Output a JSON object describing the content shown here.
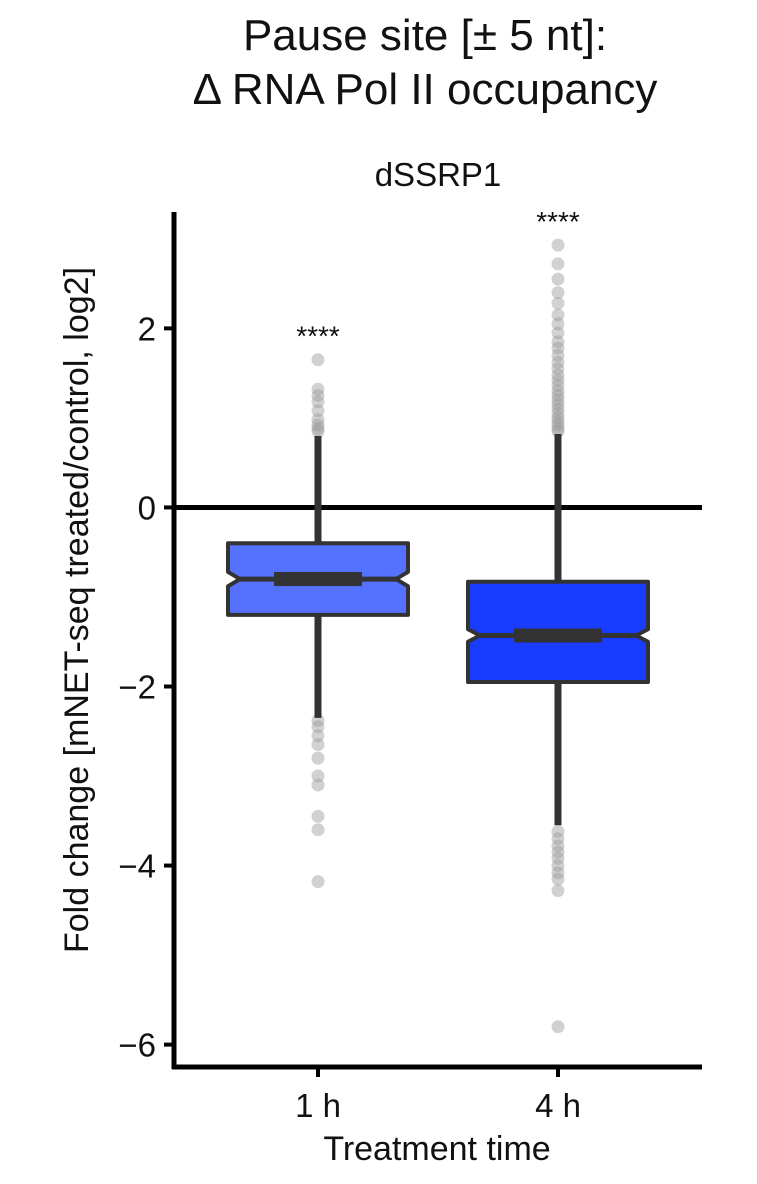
{
  "title_lines": [
    "Pause site [± 5 nt]:",
    "Δ RNA Pol II occupancy"
  ],
  "chart_data": {
    "type": "boxplot",
    "facet": "dSSRP1",
    "xlabel": "Treatment time",
    "ylabel": "Fold change [mNET-seq treated/control, log2]",
    "categories": [
      "1 h",
      "4 h"
    ],
    "ylim": [
      -6.25,
      3.3
    ],
    "yticks": [
      2,
      0,
      -2,
      -4,
      -6
    ],
    "ytick_labels": [
      "2",
      "0",
      "−2",
      "−4",
      "−6"
    ],
    "reference_line": 0,
    "grid": false,
    "boxes": [
      {
        "category": "1 h",
        "color": "#5572ff",
        "q1": -1.2,
        "median": -0.8,
        "q3": -0.4,
        "whisker_low": -2.35,
        "whisker_high": 0.8,
        "notch_low": -0.88,
        "notch_high": -0.72,
        "significance": "****",
        "outliers": [
          1.65,
          1.32,
          1.25,
          1.18,
          1.08,
          0.98,
          0.92,
          0.88,
          0.85,
          -2.38,
          -2.45,
          -2.55,
          -2.65,
          -2.8,
          -3.0,
          -3.1,
          -3.45,
          -3.6,
          -4.18
        ]
      },
      {
        "category": "4 h",
        "color": "#1a3cff",
        "q1": -1.95,
        "median": -1.43,
        "q3": -0.83,
        "whisker_low": -3.55,
        "whisker_high": 0.82,
        "notch_low": -1.5,
        "notch_high": -1.36,
        "significance": "****",
        "outliers": [
          2.93,
          2.72,
          2.55,
          2.4,
          2.28,
          2.15,
          2.05,
          1.95,
          1.85,
          1.78,
          1.7,
          1.62,
          1.55,
          1.48,
          1.42,
          1.36,
          1.3,
          1.25,
          1.2,
          1.15,
          1.1,
          1.05,
          1.0,
          0.96,
          0.92,
          0.88,
          0.85,
          -3.62,
          -3.7,
          -3.78,
          -3.85,
          -3.92,
          -4.0,
          -4.08,
          -4.15,
          -4.28,
          -5.8
        ]
      }
    ]
  }
}
